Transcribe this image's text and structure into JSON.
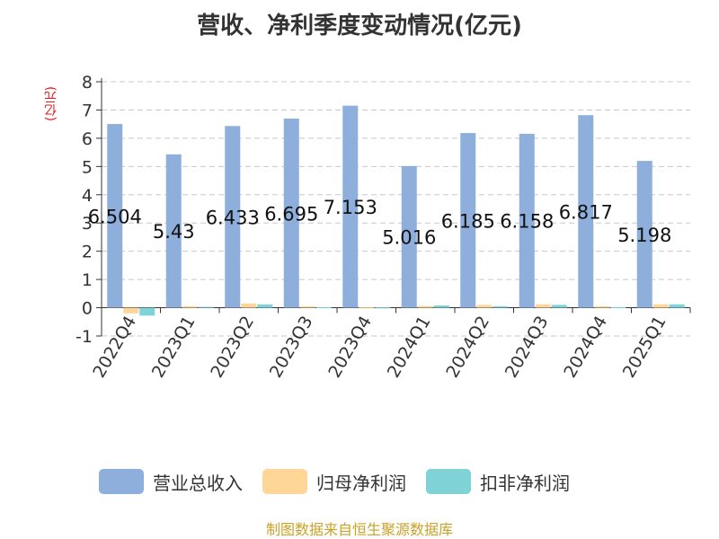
{
  "chart_data": {
    "type": "bar",
    "title": "营收、净利季度变动情况(亿元)",
    "ylabel": "(亿元)",
    "xlabel": "",
    "categories": [
      "2022Q4",
      "2023Q1",
      "2023Q2",
      "2023Q3",
      "2023Q4",
      "2024Q1",
      "2024Q2",
      "2024Q3",
      "2024Q4",
      "2025Q1"
    ],
    "ylim": [
      -1,
      8
    ],
    "yticks": [
      -1,
      0,
      1,
      2,
      3,
      4,
      5,
      6,
      7,
      8
    ],
    "grid": true,
    "legend_position": "bottom",
    "series": [
      {
        "name": "营业总收入",
        "color": "#8eaedb",
        "values": [
          6.504,
          5.43,
          6.433,
          6.695,
          7.153,
          5.016,
          6.185,
          6.158,
          6.817,
          5.198
        ],
        "labels": [
          "6.504",
          "5.43",
          "6.433",
          "6.695",
          "7.153",
          "5.016",
          "6.185",
          "6.158",
          "6.817",
          "5.198"
        ]
      },
      {
        "name": "归母净利润",
        "color": "#fdd698",
        "values": [
          -0.2,
          0.05,
          0.15,
          0.05,
          0.01,
          0.06,
          0.1,
          0.12,
          0.05,
          0.12
        ]
      },
      {
        "name": "扣非净利润",
        "color": "#7fd3d6",
        "values": [
          -0.28,
          0.03,
          0.12,
          0.02,
          0.01,
          0.08,
          0.05,
          0.1,
          0.02,
          0.12
        ]
      }
    ]
  },
  "footer": "制图数据来自恒生聚源数据库"
}
